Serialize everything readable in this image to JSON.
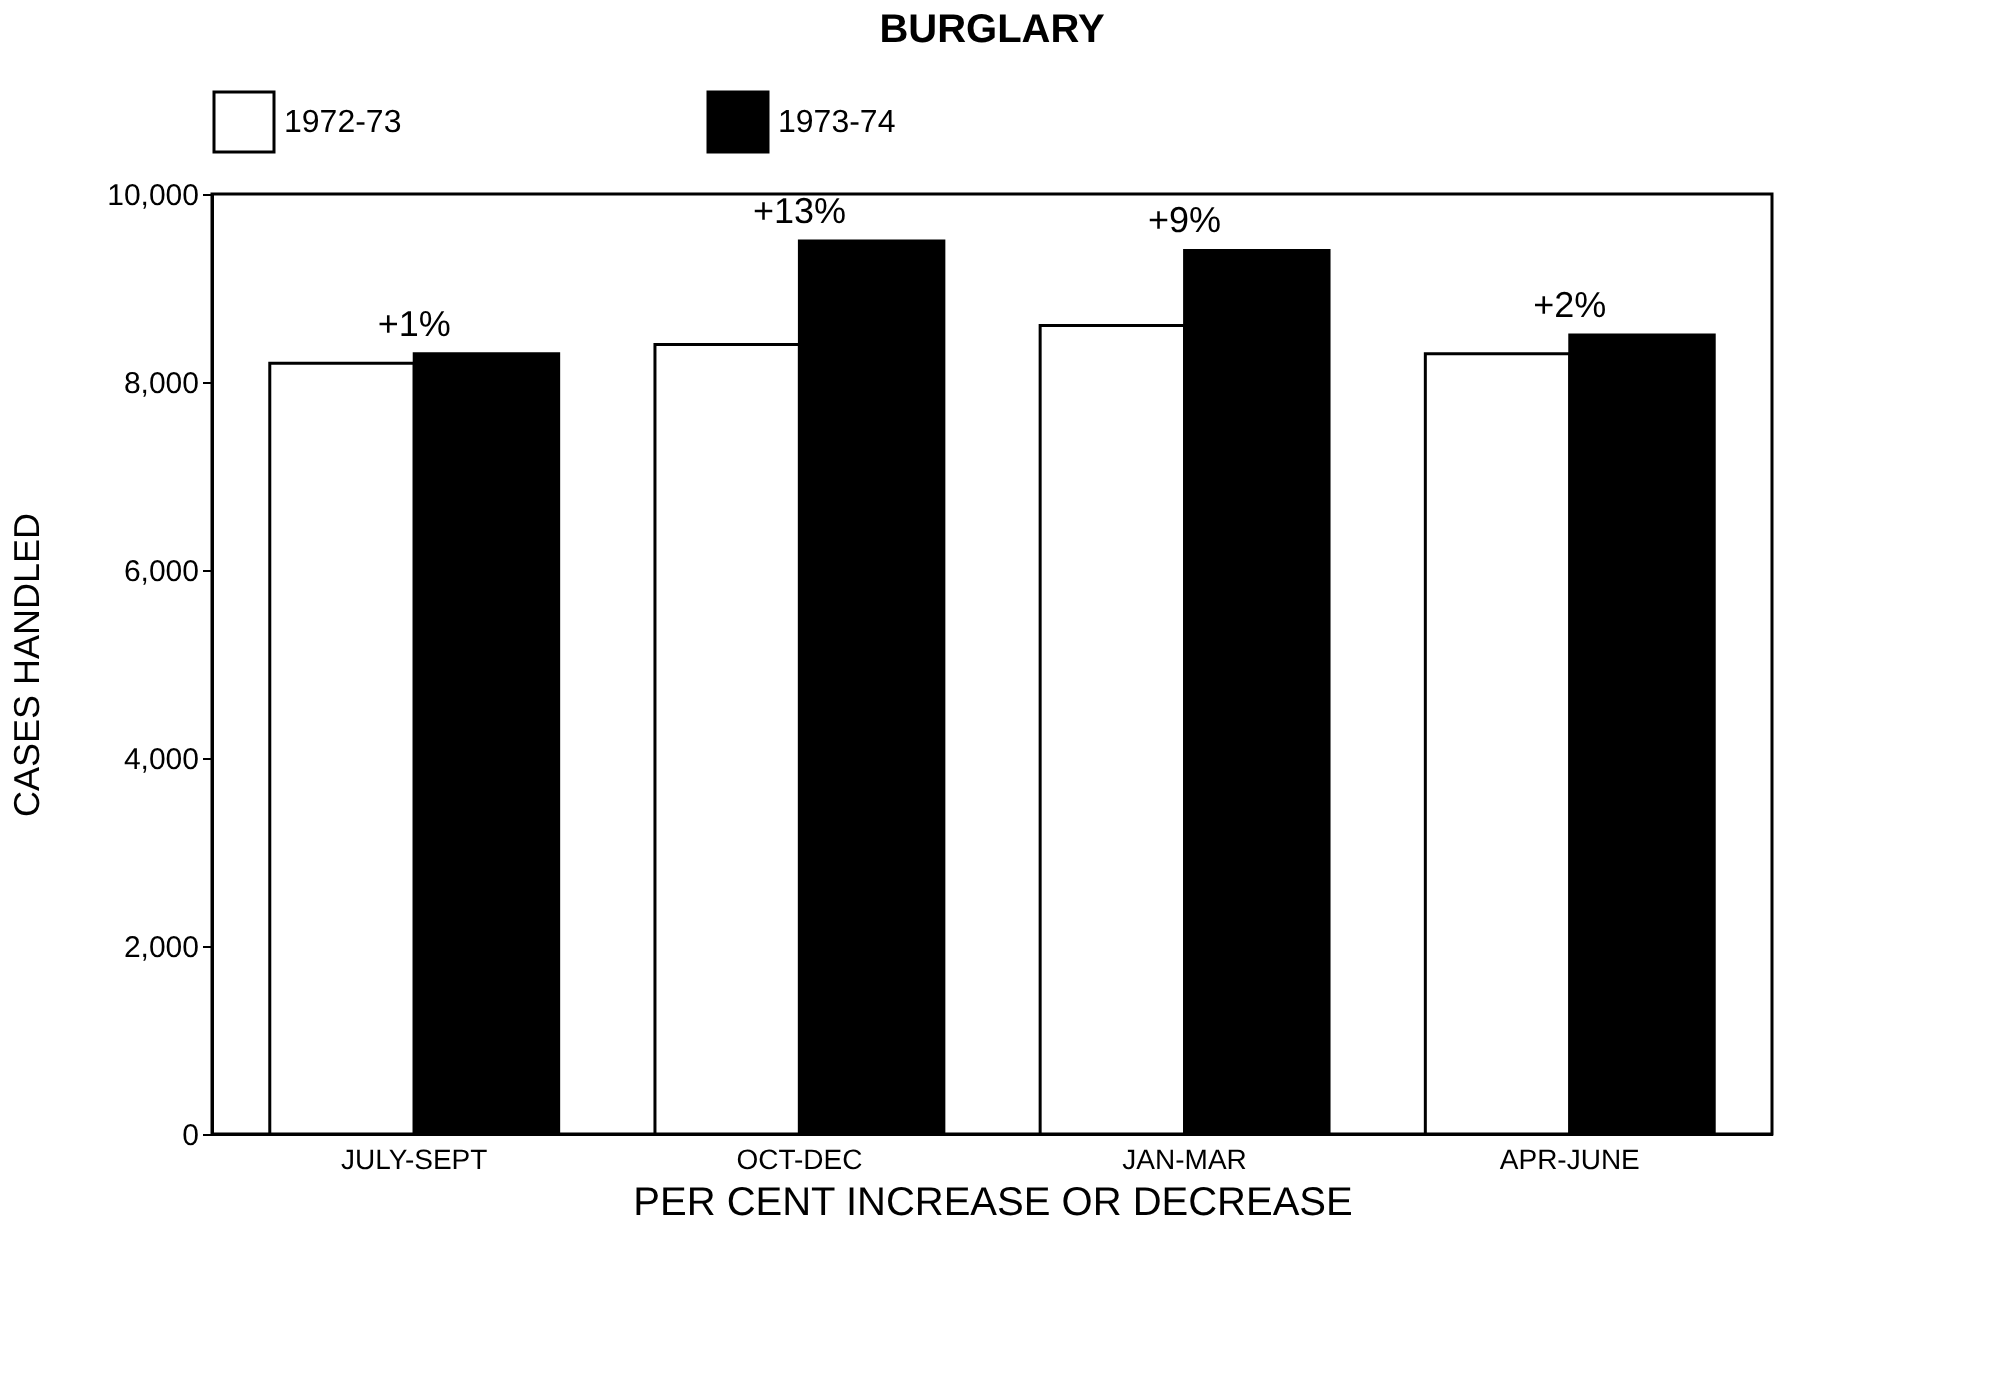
{
  "chart_data": {
    "type": "bar",
    "title": "BURGLARY",
    "xlabel": "PER CENT INCREASE OR DECREASE",
    "ylabel": "CASES HANDLED",
    "categories": [
      "JULY-SEPT",
      "OCT-DEC",
      "JAN-MAR",
      "APR-JUNE"
    ],
    "series": [
      {
        "name": "1972-73",
        "color": "#ffffff",
        "values": [
          8200,
          8400,
          8600,
          8300
        ]
      },
      {
        "name": "1973-74",
        "color": "#000000",
        "values": [
          8300,
          9500,
          9400,
          8500
        ]
      }
    ],
    "ylim": [
      0,
      10000
    ],
    "yticks": [
      0,
      {
        "value": 2000,
        "label": "2,000"
      },
      {
        "value": 4000,
        "label": "4,000"
      },
      {
        "value": 6000,
        "label": "6,000"
      },
      {
        "value": 8000,
        "label": "8,000"
      },
      {
        "value": 10000,
        "label": "10,000"
      }
    ],
    "grid": false,
    "legend": "top",
    "annotations": [
      {
        "text": "+1%",
        "x": "JULY-SEPT",
        "y": 8300
      },
      {
        "text": "+13%",
        "x": "OCT-DEC",
        "y": 9500
      },
      {
        "text": "+9%",
        "x": "JAN-MAR",
        "y": 9400
      },
      {
        "text": "+2%",
        "x": "APR-JUNE",
        "y": 8500
      }
    ]
  }
}
